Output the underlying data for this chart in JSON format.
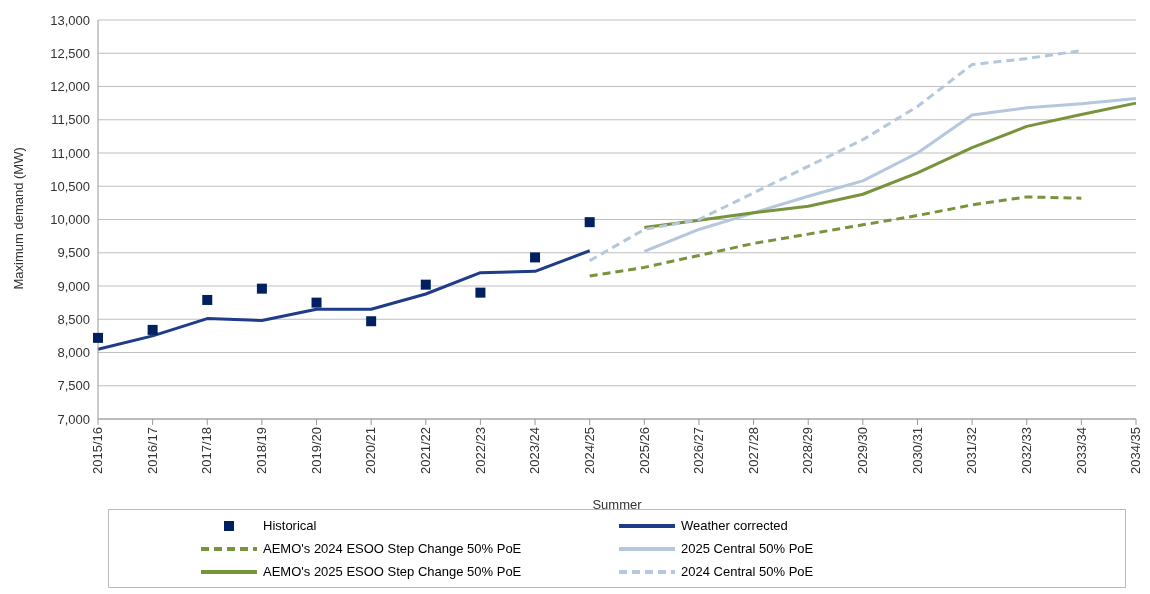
{
  "chart_data": {
    "type": "line",
    "xlabel": "Summer",
    "ylabel": "Maximum demand (MW)",
    "categories": [
      "2015/16",
      "2016/17",
      "2017/18",
      "2018/19",
      "2019/20",
      "2020/21",
      "2021/22",
      "2022/23",
      "2023/24",
      "2024/25",
      "2025/26",
      "2026/27",
      "2027/28",
      "2028/29",
      "2029/30",
      "2030/31",
      "2031/32",
      "2032/33",
      "2033/34",
      "2034/35"
    ],
    "ylim": [
      7000,
      13000
    ],
    "yticks": [
      {
        "value": 7000,
        "label": "7,000"
      },
      {
        "value": 7500,
        "label": "7,500"
      },
      {
        "value": 8000,
        "label": "8,000"
      },
      {
        "value": 8500,
        "label": "8,500"
      },
      {
        "value": 9000,
        "label": "9,000"
      },
      {
        "value": 9500,
        "label": "9,500"
      },
      {
        "value": 10000,
        "label": "10,000"
      },
      {
        "value": 10500,
        "label": "10,500"
      },
      {
        "value": 11000,
        "label": "11,000"
      },
      {
        "value": 11500,
        "label": "11,500"
      },
      {
        "value": 12000,
        "label": "12,000"
      },
      {
        "value": 12500,
        "label": "12,500"
      },
      {
        "value": 13000,
        "label": "13,000"
      }
    ],
    "grid": "y",
    "legend": "bottom",
    "series": [
      {
        "name": "Historical",
        "type": "scatter",
        "marker": "square",
        "color": "#002060",
        "values": [
          8220,
          8340,
          8790,
          8960,
          8750,
          8470,
          9020,
          8900,
          9430,
          9960,
          null,
          null,
          null,
          null,
          null,
          null,
          null,
          null,
          null,
          null
        ]
      },
      {
        "name": "Weather corrected",
        "line_style": "solid",
        "color": "#1f3c88",
        "values": [
          8050,
          8250,
          8510,
          8480,
          8650,
          8650,
          8880,
          9200,
          9220,
          9530,
          null,
          null,
          null,
          null,
          null,
          null,
          null,
          null,
          null,
          null
        ]
      },
      {
        "name": "AEMO's 2024 ESOO Step Change 50% PoE",
        "line_style": "dashed",
        "color": "#77933c",
        "values": [
          null,
          null,
          null,
          null,
          null,
          null,
          null,
          null,
          null,
          9150,
          9280,
          9460,
          9640,
          9780,
          9920,
          10060,
          10220,
          10340,
          10320,
          null
        ]
      },
      {
        "name": "2025 Central 50% PoE",
        "line_style": "solid",
        "color": "#b4c7dc",
        "values": [
          null,
          null,
          null,
          null,
          null,
          null,
          null,
          null,
          null,
          null,
          9520,
          9850,
          10100,
          10350,
          10580,
          11000,
          11570,
          11680,
          11740,
          11820
        ]
      },
      {
        "name": "AEMO's 2025 ESOO Step Change 50% PoE",
        "line_style": "solid",
        "color": "#77933c",
        "values": [
          null,
          null,
          null,
          null,
          null,
          null,
          null,
          null,
          null,
          null,
          9880,
          9990,
          10100,
          10200,
          10380,
          10700,
          11080,
          11400,
          11580,
          11750
        ]
      },
      {
        "name": "2024 Central 50% PoE",
        "line_style": "dashed",
        "color": "#b4c7dc",
        "values": [
          null,
          null,
          null,
          null,
          null,
          null,
          null,
          null,
          null,
          9380,
          9850,
          10000,
          10400,
          10800,
          11200,
          11700,
          12330,
          12420,
          12540,
          null
        ]
      }
    ]
  }
}
